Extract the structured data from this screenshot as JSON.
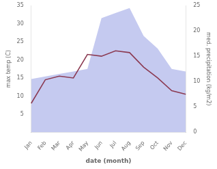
{
  "chart_data": {
    "type": "line",
    "categories": [
      "Jan",
      "Feb",
      "Mar",
      "Apr",
      "May",
      "Jun",
      "Jul",
      "Aug",
      "Sep",
      "Oct",
      "Nov",
      "Dec"
    ],
    "xlabel": "date (month)",
    "ylabel": "max temp (C)",
    "y2label": "med. precipitation (kg/m2)",
    "series": [
      {
        "type": "line",
        "color": "#8B3A52",
        "values": [
          8.0,
          14.5,
          15.5,
          15.0,
          21.5,
          21.0,
          22.5,
          22.0,
          18.0,
          15.0,
          11.5,
          10.5
        ]
      },
      {
        "type": "area",
        "color": "#c5caf0",
        "axis": "y2",
        "values": [
          10.5,
          11.0,
          11.5,
          12.0,
          12.5,
          22.5,
          23.5,
          24.5,
          19.0,
          16.5,
          12.5,
          12.0
        ]
      }
    ],
    "ylim": [
      0,
      35
    ],
    "yticks": [
      5,
      10,
      15,
      20,
      25,
      30,
      35
    ],
    "y2lim": [
      0,
      25
    ],
    "y2ticks": [
      0,
      5,
      10,
      15,
      20,
      25
    ],
    "grid": false
  }
}
